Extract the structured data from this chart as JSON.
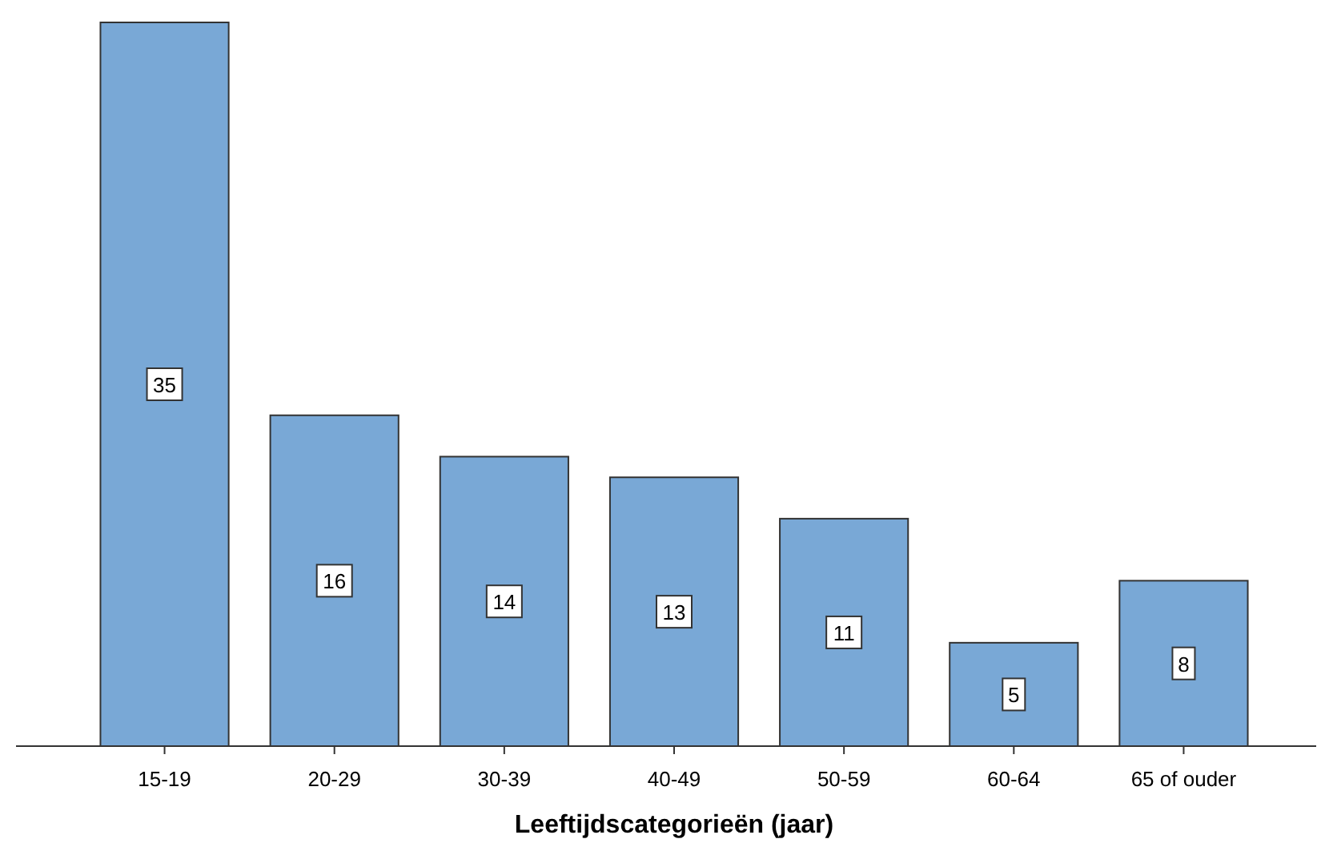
{
  "chart_data": {
    "type": "bar",
    "xlabel": "Leeftijdscategorieën (jaar)",
    "categories": [
      "15-19",
      "20-29",
      "30-39",
      "40-49",
      "50-59",
      "60-64",
      "65 of ouder"
    ],
    "values": [
      35,
      16,
      14,
      13,
      11,
      5,
      8
    ],
    "color": "#79a8d6",
    "data_labels": true
  }
}
